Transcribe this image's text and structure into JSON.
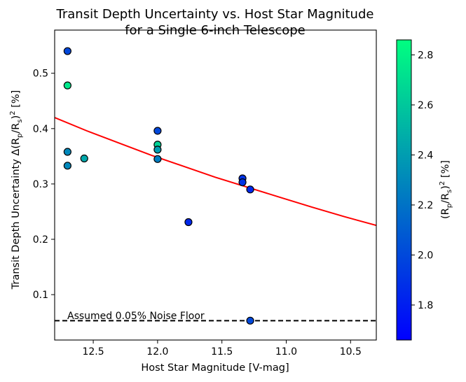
{
  "chart_data": {
    "type": "scatter",
    "title_line1": "Transit Depth Uncertainty vs. Host Star Magnitude",
    "title_line2": "for a Single 6-inch Telescope",
    "xlabel": "Host Star Magnitude [V-mag]",
    "ylabel_prefix": "Transit Depth Uncertainty Δ(R",
    "ylabel_sub1": "p",
    "ylabel_mid": "/R",
    "ylabel_sub2": "s",
    "ylabel_post": ")",
    "ylabel_sup": "2",
    "ylabel_suffix": " [%]",
    "xlim": [
      12.8,
      10.3
    ],
    "ylim": [
      0.018,
      0.578
    ],
    "xticks": [
      12.5,
      12.0,
      11.5,
      11.0,
      10.5
    ],
    "xtick_labels": [
      "12.5",
      "12.0",
      "11.5",
      "11.0",
      "10.5"
    ],
    "yticks": [
      0.1,
      0.2,
      0.3,
      0.4,
      0.5
    ],
    "ytick_labels": [
      "0.1",
      "0.2",
      "0.3",
      "0.4",
      "0.5"
    ],
    "colorbar": {
      "label_prefix": "(R",
      "label_sub1": "p",
      "label_mid": "/R",
      "label_sub2": "s",
      "label_post": ")",
      "label_sup": "2",
      "label_suffix": " [%]",
      "range": [
        1.66,
        2.86
      ],
      "ticks": [
        1.8,
        2.0,
        2.2,
        2.4,
        2.6,
        2.8
      ],
      "tick_labels": [
        "1.8",
        "2.0",
        "2.2",
        "2.4",
        "2.6",
        "2.8"
      ],
      "colormap": "winter",
      "color_low": "#0000ff",
      "color_high": "#00ff80"
    },
    "points": [
      {
        "x": 12.7,
        "y": 0.54,
        "c": 2.0
      },
      {
        "x": 12.7,
        "y": 0.478,
        "c": 2.75
      },
      {
        "x": 12.7,
        "y": 0.358,
        "c": 2.3
      },
      {
        "x": 12.7,
        "y": 0.333,
        "c": 2.3
      },
      {
        "x": 12.57,
        "y": 0.346,
        "c": 2.45
      },
      {
        "x": 12.0,
        "y": 0.396,
        "c": 2.0
      },
      {
        "x": 12.0,
        "y": 0.371,
        "c": 2.65
      },
      {
        "x": 12.0,
        "y": 0.362,
        "c": 2.4
      },
      {
        "x": 12.0,
        "y": 0.345,
        "c": 2.25
      },
      {
        "x": 11.76,
        "y": 0.231,
        "c": 1.85
      },
      {
        "x": 11.34,
        "y": 0.31,
        "c": 1.9
      },
      {
        "x": 11.34,
        "y": 0.303,
        "c": 1.9
      },
      {
        "x": 11.28,
        "y": 0.29,
        "c": 1.85
      },
      {
        "x": 11.28,
        "y": 0.053,
        "c": 2.0
      }
    ],
    "fit_curve": {
      "color": "#ff0000",
      "x": [
        12.8,
        12.55,
        12.3,
        12.05,
        11.8,
        11.55,
        11.3,
        11.05,
        10.8,
        10.55,
        10.3
      ],
      "y": [
        0.42,
        0.396,
        0.374,
        0.352,
        0.332,
        0.312,
        0.294,
        0.276,
        0.258,
        0.241,
        0.225
      ]
    },
    "noise_floor": {
      "y": 0.053,
      "label": "Assumed 0.05% Noise Floor"
    }
  }
}
